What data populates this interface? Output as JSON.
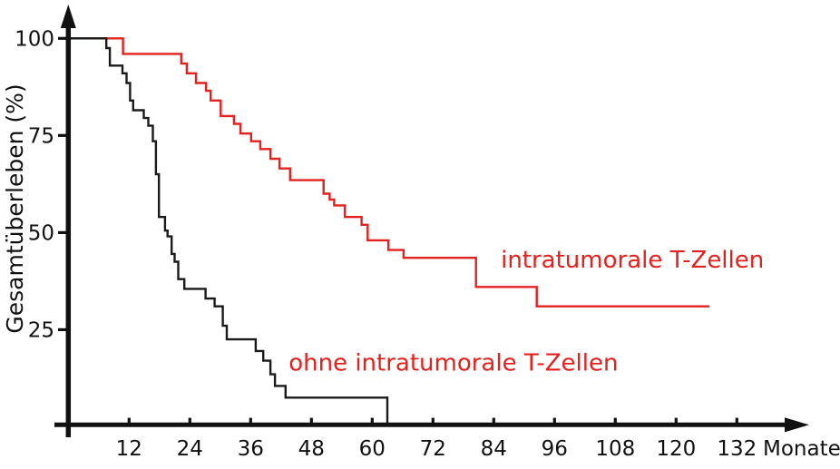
{
  "page": {
    "background": "#ffffff"
  },
  "chart_data": {
    "type": "line",
    "variant": "kaplan-meier-step",
    "title": "",
    "xlabel": "Monate",
    "ylabel": "Gesamtüberleben (%)",
    "xlim": [
      0,
      141
    ],
    "ylim": [
      0,
      104
    ],
    "x_ticks": [
      12,
      24,
      36,
      48,
      60,
      72,
      84,
      96,
      108,
      120,
      132
    ],
    "y_ticks": [
      25,
      50,
      75,
      100
    ],
    "grid": false,
    "legend": "inline-text-labels",
    "axis_color": "#111111",
    "series": [
      {
        "name": "intratumorale T-Zellen",
        "color": "#e3211e",
        "start": [
          0,
          100
        ],
        "steps": [
          [
            10.8,
            96
          ],
          [
            22.3,
            93.5
          ],
          [
            23.4,
            91
          ],
          [
            25.2,
            88.5
          ],
          [
            27.2,
            86.5
          ],
          [
            28.1,
            84
          ],
          [
            30.1,
            80
          ],
          [
            32.7,
            78
          ],
          [
            34,
            75.5
          ],
          [
            36.1,
            73.5
          ],
          [
            37.9,
            71.5
          ],
          [
            39.9,
            69
          ],
          [
            41.7,
            66.5
          ],
          [
            43.8,
            63.5
          ],
          [
            50.4,
            60
          ],
          [
            51.6,
            58.5
          ],
          [
            52.5,
            57
          ],
          [
            54.6,
            54
          ],
          [
            57.9,
            52
          ],
          [
            59.1,
            48
          ],
          [
            63.2,
            45.5
          ],
          [
            66.2,
            43.5
          ],
          [
            80.5,
            36
          ],
          [
            92.5,
            31
          ]
        ],
        "end_month": 126.6
      },
      {
        "name": "ohne intratumorale T-Zellen",
        "color": "#1a1a1a",
        "start": [
          0,
          100
        ],
        "steps": [
          [
            7.5,
            97.5
          ],
          [
            8.2,
            93
          ],
          [
            10.7,
            91
          ],
          [
            11.5,
            88.5
          ],
          [
            12.2,
            84
          ],
          [
            12.8,
            81.5
          ],
          [
            14.9,
            79.5
          ],
          [
            15.8,
            77.5
          ],
          [
            16.7,
            73.5
          ],
          [
            17.3,
            65
          ],
          [
            17.9,
            54
          ],
          [
            19.1,
            50.5
          ],
          [
            19.6,
            49
          ],
          [
            20.4,
            44.5
          ],
          [
            21,
            42.5
          ],
          [
            21.7,
            38
          ],
          [
            22.9,
            35.5
          ],
          [
            27.1,
            33
          ],
          [
            28.9,
            31
          ],
          [
            30.5,
            26
          ],
          [
            31.3,
            22.5
          ],
          [
            37,
            19.5
          ],
          [
            38.5,
            17
          ],
          [
            39.9,
            13.5
          ],
          [
            40.8,
            10.5
          ],
          [
            42.9,
            7.5
          ],
          [
            63,
            0
          ]
        ],
        "end_month": 63
      }
    ],
    "annotations": [
      {
        "text": "intratumorale T-Zellen",
        "color": "#e3211e",
        "anchor_month": 85.4,
        "anchor_percent": 41
      },
      {
        "text": "ohne intratumorale T-Zellen",
        "color": "#e3211e",
        "anchor_month": 43.5,
        "anchor_percent": 14.5
      }
    ]
  }
}
